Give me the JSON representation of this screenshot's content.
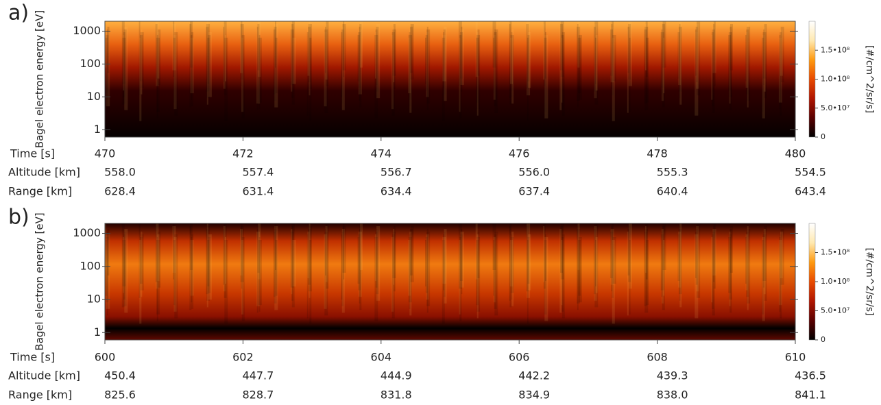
{
  "chart_data": [
    {
      "type": "spectrogram",
      "panel_label": "a)",
      "ylabel": "Bagel electron energy [eV]",
      "xlabel": "Time [s]",
      "ylog": true,
      "ylim": [
        0.6,
        2000
      ],
      "yticks": [
        1,
        10,
        100,
        1000
      ],
      "xlim": [
        470,
        480
      ],
      "xticks": [
        470,
        472,
        474,
        476,
        478,
        480
      ],
      "rows": [
        {
          "name": "Altitude [km]",
          "values": [
            "558.0",
            "557.4",
            "556.7",
            "556.0",
            "555.3",
            "554.5"
          ]
        },
        {
          "name": "Range [km]",
          "values": [
            "628.4",
            "631.4",
            "634.4",
            "637.4",
            "640.4",
            "643.4"
          ]
        }
      ],
      "colorbar_label": "[#/cm^2/sr/s]",
      "zlim": [
        0,
        200000000
      ],
      "zticks": [
        0,
        {
          "value": 50000000,
          "label": "5.0•10⁷"
        },
        {
          "value": 100000000,
          "label": "1.0•10⁸"
        },
        {
          "value": 150000000,
          "label": "1.5•10⁸"
        }
      ],
      "colormap": [
        "#000000",
        "#5a0000",
        "#b01500",
        "#e84a00",
        "#ff9a10",
        "#ffe9b0",
        "#ffffff"
      ]
    },
    {
      "type": "spectrogram",
      "panel_label": "b)",
      "ylabel": "Bagel electron energy [eV]",
      "xlabel": "Time [s]",
      "ylog": true,
      "ylim": [
        0.6,
        2000
      ],
      "yticks": [
        1,
        10,
        100,
        1000
      ],
      "xlim": [
        600,
        610
      ],
      "xticks": [
        600,
        602,
        604,
        606,
        608,
        610
      ],
      "rows": [
        {
          "name": "Altitude [km]",
          "values": [
            "450.4",
            "447.7",
            "444.9",
            "442.2",
            "439.3",
            "436.5"
          ]
        },
        {
          "name": "Range [km]",
          "values": [
            "825.6",
            "828.7",
            "831.8",
            "834.9",
            "838.0",
            "841.1"
          ]
        }
      ],
      "colorbar_label": "[#/cm^2/sr/s]",
      "zlim": [
        0,
        200000000
      ],
      "zticks": [
        0,
        {
          "value": 50000000,
          "label": "5.0•10⁷"
        },
        {
          "value": 100000000,
          "label": "1.0•10⁸"
        },
        {
          "value": 150000000,
          "label": "1.5•10⁸"
        }
      ],
      "colormap": [
        "#000000",
        "#5a0000",
        "#b01500",
        "#e84a00",
        "#ff9a10",
        "#ffe9b0",
        "#ffffff"
      ]
    }
  ]
}
